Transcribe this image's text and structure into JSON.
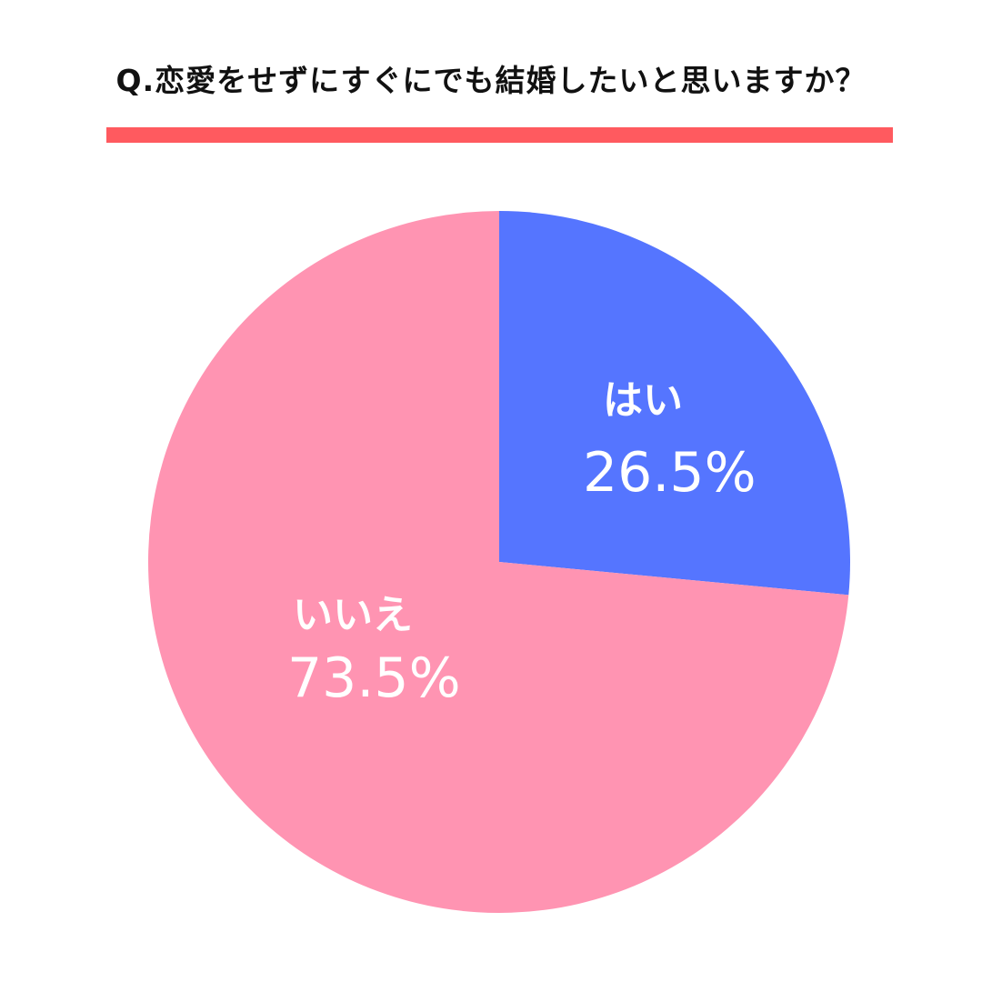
{
  "chart_data": {
    "type": "pie",
    "title": "Q.恋愛をせずにすぐにでも結婚したいと思いますか？",
    "start": "12 o'clock",
    "direction": "clockwise",
    "legend": "none",
    "slices": [
      {
        "label": "はい",
        "value": 26.5,
        "value_label": "26.5%",
        "color": "#5575FF"
      },
      {
        "label": "いいえ",
        "value": 73.5,
        "value_label": "73.5%",
        "color": "#FF94B2"
      }
    ]
  },
  "colors": {
    "title_bar": "#FF5A5F",
    "title_text": "#111111",
    "label_text": "#FFFFFF"
  }
}
